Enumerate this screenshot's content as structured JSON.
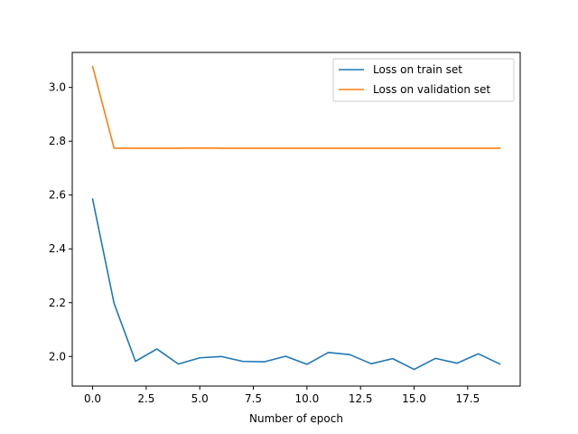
{
  "chart_data": {
    "type": "line",
    "title": "",
    "xlabel": "Number of epoch",
    "ylabel": "",
    "xlim": [
      -0.95,
      19.95
    ],
    "ylim": [
      1.89,
      3.13
    ],
    "xticks": [
      0.0,
      2.5,
      5.0,
      7.5,
      10.0,
      12.5,
      15.0,
      17.5
    ],
    "xtick_labels": [
      "0.0",
      "2.5",
      "5.0",
      "7.5",
      "10.0",
      "12.5",
      "15.0",
      "17.5"
    ],
    "yticks": [
      2.0,
      2.2,
      2.4,
      2.6,
      2.8,
      3.0
    ],
    "ytick_labels": [
      "2.0",
      "2.2",
      "2.4",
      "2.6",
      "2.8",
      "3.0"
    ],
    "grid": false,
    "legend": "top-right",
    "x": [
      0,
      1,
      2,
      3,
      4,
      5,
      6,
      7,
      8,
      9,
      10,
      11,
      12,
      13,
      14,
      15,
      16,
      17,
      18,
      19
    ],
    "series": [
      {
        "name": "Loss on train set",
        "color": "#1f77b4",
        "values": [
          2.585,
          2.198,
          1.982,
          2.028,
          1.972,
          1.995,
          2.0,
          1.982,
          1.98,
          2.001,
          1.971,
          2.015,
          2.007,
          1.973,
          1.992,
          1.952,
          1.993,
          1.975,
          2.01,
          1.972
        ]
      },
      {
        "name": "Loss on validation set",
        "color": "#ff7f0e",
        "values": [
          3.078,
          2.774,
          2.774,
          2.774,
          2.774,
          2.775,
          2.774,
          2.774,
          2.774,
          2.774,
          2.774,
          2.774,
          2.774,
          2.774,
          2.774,
          2.774,
          2.774,
          2.774,
          2.774,
          2.774
        ]
      }
    ]
  }
}
